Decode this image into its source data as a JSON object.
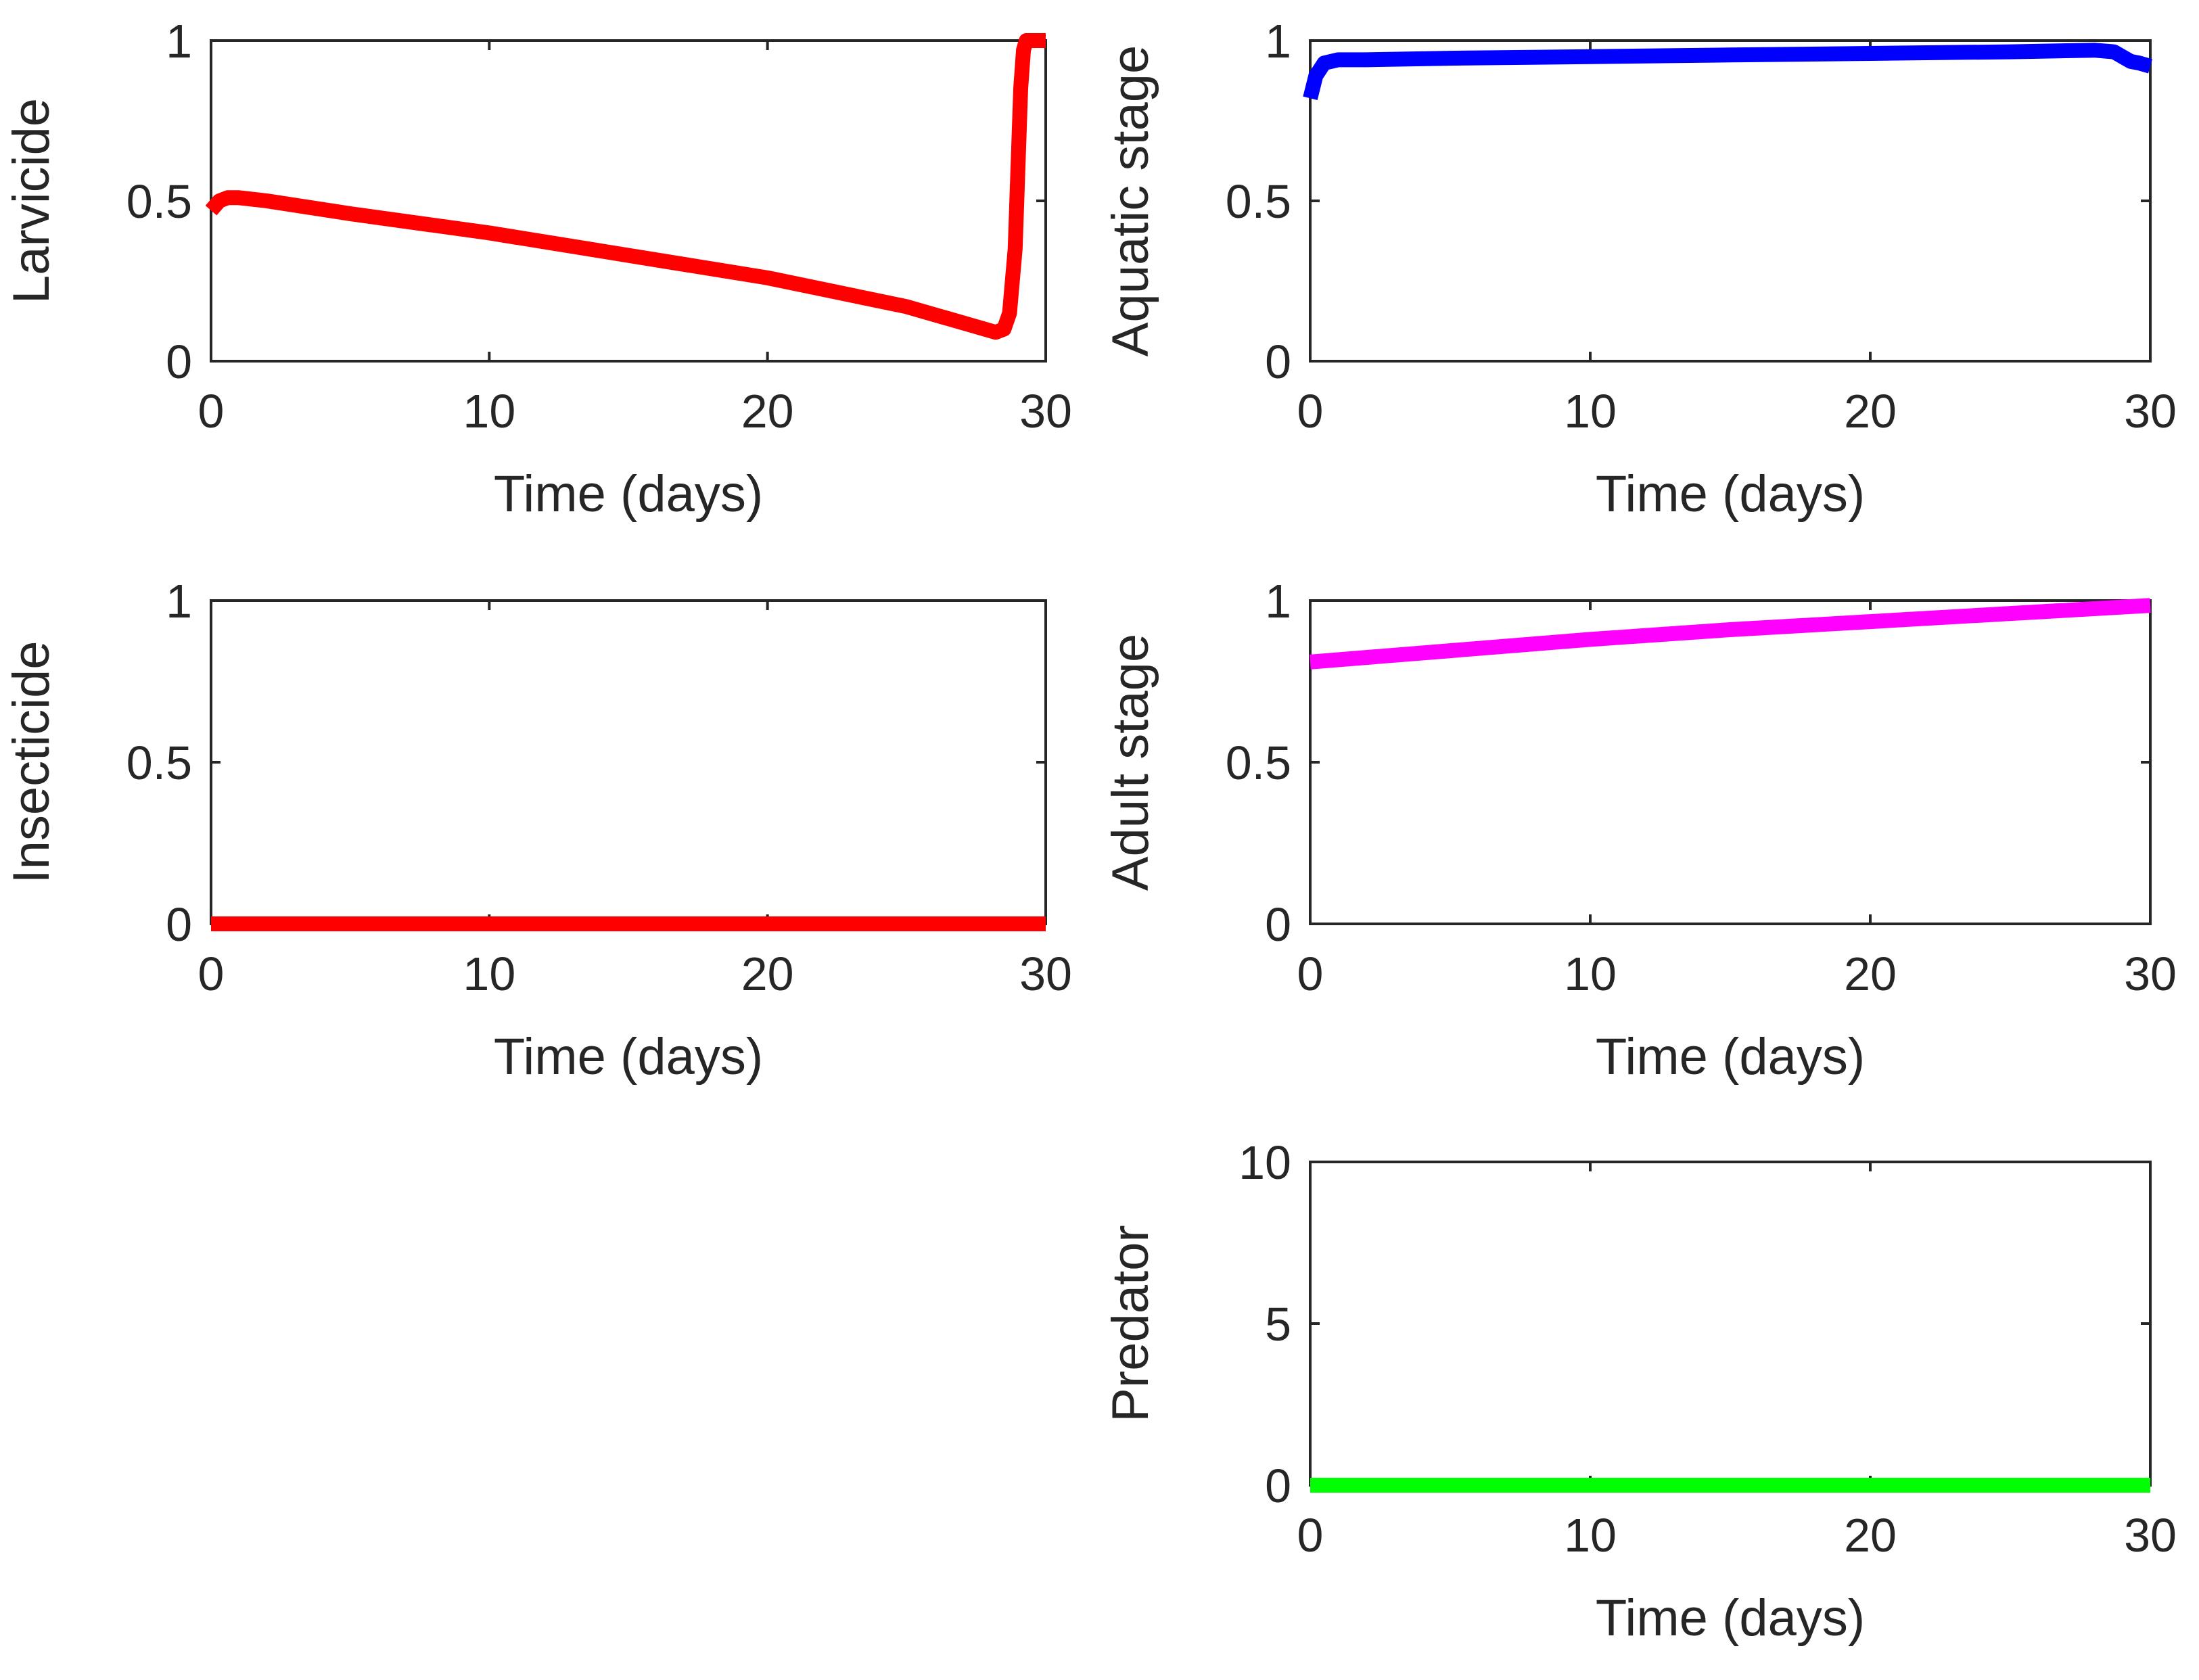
{
  "chart_data": [
    {
      "id": "larvicide",
      "type": "line",
      "xlabel": "Time (days)",
      "ylabel": "Larvicide",
      "xlim": [
        0,
        30
      ],
      "ylim": [
        0,
        1
      ],
      "xticks": [
        0,
        10,
        20,
        30
      ],
      "yticks": [
        0,
        0.5,
        1
      ],
      "xtick_labels": [
        "0",
        "10",
        "20",
        "30"
      ],
      "ytick_labels": [
        "0",
        "0.5",
        "1"
      ],
      "color": "#ff0000",
      "series": [
        {
          "name": "Larvicide",
          "x": [
            0,
            0.3,
            0.6,
            1,
            2,
            5,
            10,
            15,
            20,
            25,
            27,
            27.8,
            28.2,
            28.5,
            28.7,
            28.9,
            29.0,
            29.1,
            29.2,
            29.3,
            29.5,
            30
          ],
          "y": [
            0.47,
            0.5,
            0.51,
            0.51,
            0.5,
            0.46,
            0.4,
            0.33,
            0.26,
            0.17,
            0.12,
            0.1,
            0.09,
            0.1,
            0.15,
            0.35,
            0.6,
            0.85,
            0.97,
            1,
            1,
            1
          ]
        }
      ]
    },
    {
      "id": "aquatic",
      "type": "line",
      "xlabel": "Time (days)",
      "ylabel": "Aquatic stage",
      "xlim": [
        0,
        30
      ],
      "ylim": [
        0,
        1
      ],
      "xticks": [
        0,
        10,
        20,
        30
      ],
      "yticks": [
        0,
        0.5,
        1
      ],
      "xtick_labels": [
        "0",
        "10",
        "20",
        "30"
      ],
      "ytick_labels": [
        "0",
        "0.5",
        "1"
      ],
      "color": "#0000ff",
      "series": [
        {
          "name": "Aquatic stage",
          "x": [
            0,
            0.2,
            0.5,
            1,
            2,
            5,
            10,
            15,
            20,
            25,
            28,
            28.7,
            29,
            29.3,
            29.6,
            30
          ],
          "y": [
            0.82,
            0.89,
            0.93,
            0.94,
            0.94,
            0.945,
            0.95,
            0.955,
            0.96,
            0.965,
            0.97,
            0.965,
            0.95,
            0.935,
            0.93,
            0.92
          ]
        }
      ]
    },
    {
      "id": "insecticide",
      "type": "line",
      "xlabel": "Time (days)",
      "ylabel": "Insecticide",
      "xlim": [
        0,
        30
      ],
      "ylim": [
        0,
        1
      ],
      "xticks": [
        0,
        10,
        20,
        30
      ],
      "yticks": [
        0,
        0.5,
        1
      ],
      "xtick_labels": [
        "0",
        "10",
        "20",
        "30"
      ],
      "ytick_labels": [
        "0",
        "0.5",
        "1"
      ],
      "color": "#ff0000",
      "series": [
        {
          "name": "Insecticide",
          "x": [
            0,
            30
          ],
          "y": [
            0,
            0
          ]
        }
      ]
    },
    {
      "id": "adult",
      "type": "line",
      "xlabel": "Time (days)",
      "ylabel": "Adult stage",
      "xlim": [
        0,
        30
      ],
      "ylim": [
        0,
        1
      ],
      "xticks": [
        0,
        10,
        20,
        30
      ],
      "yticks": [
        0,
        0.5,
        1
      ],
      "xtick_labels": [
        "0",
        "10",
        "20",
        "30"
      ],
      "ytick_labels": [
        "0",
        "0.5",
        "1"
      ],
      "color": "#ff00ff",
      "series": [
        {
          "name": "Adult stage",
          "x": [
            0,
            5,
            10,
            15,
            20,
            25,
            30
          ],
          "y": [
            0.81,
            0.845,
            0.88,
            0.91,
            0.935,
            0.96,
            0.985
          ]
        }
      ]
    },
    {
      "id": "predator",
      "type": "line",
      "xlabel": "Time (days)",
      "ylabel": "Predator",
      "xlim": [
        0,
        30
      ],
      "ylim": [
        0,
        10
      ],
      "xticks": [
        0,
        10,
        20,
        30
      ],
      "yticks": [
        0,
        5,
        10
      ],
      "xtick_labels": [
        "0",
        "10",
        "20",
        "30"
      ],
      "ytick_labels": [
        "0",
        "5",
        "10"
      ],
      "color": "#00ff00",
      "series": [
        {
          "name": "Predator",
          "x": [
            0,
            30
          ],
          "y": [
            0,
            0
          ]
        }
      ]
    }
  ]
}
